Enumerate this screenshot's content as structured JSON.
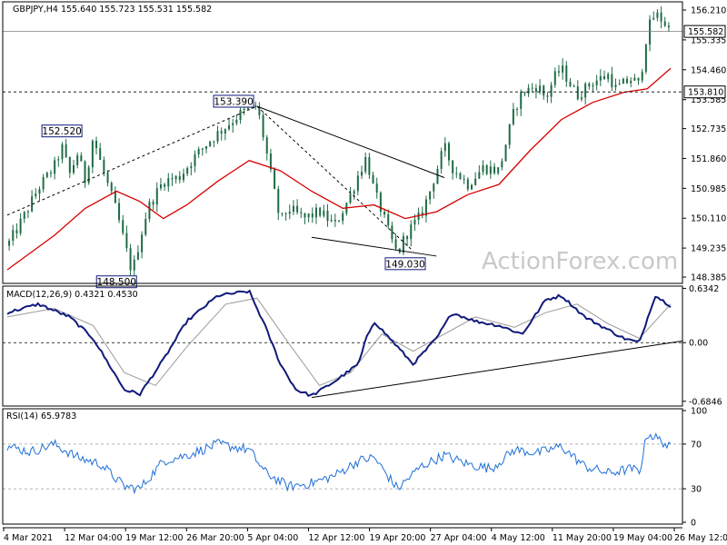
{
  "title": "GBPJPY,H4  155.640 155.723 155.531 155.582",
  "watermark": "ActionForex.com",
  "colors": {
    "background": "#ffffff",
    "candle": "#1f6b45",
    "ma": "#d60000",
    "macd": "#101a7a",
    "macd_signal": "#9a9a9a",
    "rsi": "#1f6fd6",
    "trendline": "#000000",
    "label_border": "#101a7a"
  },
  "x_axis": {
    "ticks": [
      "4 Mar 2021",
      "12 Mar 04:00",
      "19 Mar 12:00",
      "26 Mar 20:00",
      "5 Apr 04:00",
      "12 Apr 12:00",
      "19 Apr 20:00",
      "27 Apr 04:00",
      "4 May 12:00",
      "11 May 20:00",
      "19 May 04:00",
      "26 May 12:00"
    ]
  },
  "price_panel": {
    "y_ticks": [
      "156.210",
      "155.335",
      "154.460",
      "153.585",
      "152.735",
      "151.860",
      "150.985",
      "150.110",
      "149.235",
      "148.385"
    ],
    "ylim": [
      148.2,
      156.45
    ],
    "current_price": "155.582",
    "support_level": "153.810",
    "annotations": [
      "153.390",
      "152.520",
      "148.500",
      "149.030"
    ]
  },
  "macd_panel": {
    "label": "MACD(12,26,9) 0.4321 0.4530",
    "y_ticks": [
      "0.6342",
      "0.00",
      "-0.6846"
    ],
    "zero_line": "0.00"
  },
  "rsi_panel": {
    "label": "RSI(14) 65.9783",
    "y_ticks": [
      "100",
      "70",
      "30",
      "0"
    ]
  },
  "chart_data": [
    {
      "type": "candlestick",
      "title": "GBPJPY,H4",
      "x_range": [
        "2021-03-04",
        "2021-05-28"
      ],
      "ylim": [
        148.2,
        156.45
      ],
      "price_path": [
        [
          "2021-03-04",
          149.3
        ],
        [
          "2021-03-06",
          150.1
        ],
        [
          "2021-03-08",
          151.0
        ],
        [
          "2021-03-10",
          151.6
        ],
        [
          "2021-03-11",
          152.2
        ],
        [
          "2021-03-12",
          151.4
        ],
        [
          "2021-03-13",
          152.0
        ],
        [
          "2021-03-14",
          151.2
        ],
        [
          "2021-03-15",
          152.5
        ],
        [
          "2021-03-16",
          151.7
        ],
        [
          "2021-03-17",
          151.0
        ],
        [
          "2021-03-18",
          150.3
        ],
        [
          "2021-03-19",
          149.4
        ],
        [
          "2021-03-20",
          148.5
        ],
        [
          "2021-03-21",
          149.5
        ],
        [
          "2021-03-22",
          150.4
        ],
        [
          "2021-03-24",
          151.2
        ],
        [
          "2021-03-26",
          151.3
        ],
        [
          "2021-03-28",
          151.9
        ],
        [
          "2021-03-30",
          152.4
        ],
        [
          "2021-04-01",
          152.8
        ],
        [
          "2021-04-03",
          153.2
        ],
        [
          "2021-04-05",
          153.39
        ],
        [
          "2021-04-06",
          152.3
        ],
        [
          "2021-04-07",
          151.1
        ],
        [
          "2021-04-08",
          150.0
        ],
        [
          "2021-04-09",
          150.4
        ],
        [
          "2021-04-11",
          150.1
        ],
        [
          "2021-04-13",
          150.3
        ],
        [
          "2021-04-15",
          149.9
        ],
        [
          "2021-04-17",
          150.8
        ],
        [
          "2021-04-18",
          151.4
        ],
        [
          "2021-04-19",
          151.9
        ],
        [
          "2021-04-20",
          150.9
        ],
        [
          "2021-04-21",
          150.3
        ],
        [
          "2021-04-22",
          149.6
        ],
        [
          "2021-04-23",
          149.03
        ],
        [
          "2021-04-24",
          149.6
        ],
        [
          "2021-04-26",
          150.2
        ],
        [
          "2021-04-27",
          150.8
        ],
        [
          "2021-04-28",
          151.5
        ],
        [
          "2021-04-29",
          152.2
        ],
        [
          "2021-04-30",
          151.6
        ],
        [
          "2021-05-02",
          151.1
        ],
        [
          "2021-05-04",
          151.6
        ],
        [
          "2021-05-06",
          151.5
        ],
        [
          "2021-05-07",
          152.4
        ],
        [
          "2021-05-08",
          153.3
        ],
        [
          "2021-05-09",
          153.8
        ],
        [
          "2021-05-11",
          154.0
        ],
        [
          "2021-05-12",
          153.6
        ],
        [
          "2021-05-13",
          154.2
        ],
        [
          "2021-05-14",
          154.5
        ],
        [
          "2021-05-15",
          154.1
        ],
        [
          "2021-05-16",
          153.7
        ],
        [
          "2021-05-18",
          154.1
        ],
        [
          "2021-05-20",
          154.3
        ],
        [
          "2021-05-21",
          153.9
        ],
        [
          "2021-05-23",
          154.2
        ],
        [
          "2021-05-24",
          154.0
        ],
        [
          "2021-05-25",
          155.6
        ],
        [
          "2021-05-26",
          156.1
        ],
        [
          "2021-05-27",
          155.9
        ],
        [
          "2021-05-28",
          155.58
        ]
      ],
      "moving_average": [
        [
          "2021-03-04",
          148.6
        ],
        [
          "2021-03-10",
          149.6
        ],
        [
          "2021-03-14",
          150.4
        ],
        [
          "2021-03-18",
          150.9
        ],
        [
          "2021-03-21",
          150.6
        ],
        [
          "2021-03-24",
          150.1
        ],
        [
          "2021-03-27",
          150.5
        ],
        [
          "2021-03-31",
          151.2
        ],
        [
          "2021-04-04",
          151.8
        ],
        [
          "2021-04-08",
          151.5
        ],
        [
          "2021-04-12",
          150.9
        ],
        [
          "2021-04-16",
          150.4
        ],
        [
          "2021-04-20",
          150.5
        ],
        [
          "2021-04-24",
          150.1
        ],
        [
          "2021-04-28",
          150.3
        ],
        [
          "2021-05-02",
          150.8
        ],
        [
          "2021-05-06",
          151.1
        ],
        [
          "2021-05-10",
          152.1
        ],
        [
          "2021-05-14",
          153.0
        ],
        [
          "2021-05-18",
          153.5
        ],
        [
          "2021-05-22",
          153.8
        ],
        [
          "2021-05-25",
          153.9
        ],
        [
          "2021-05-28",
          154.5
        ]
      ],
      "drawn_lines": [
        {
          "from": [
            "2021-03-04",
            150.2
          ],
          "to": [
            "2021-04-05",
            153.39
          ]
        },
        {
          "from": [
            "2021-04-05",
            153.39
          ],
          "to": [
            "2021-04-29",
            151.3
          ]
        },
        {
          "from": [
            "2021-04-05",
            153.39
          ],
          "to": [
            "2021-04-25",
            149.15
          ]
        },
        {
          "from": [
            "2021-04-12",
            149.55
          ],
          "to": [
            "2021-04-28",
            149.0
          ]
        }
      ]
    },
    {
      "type": "line",
      "title": "MACD(12,26,9)",
      "ylim": [
        -0.74,
        0.66
      ],
      "series": [
        {
          "name": "MACD",
          "values": [
            [
              "2021-03-04",
              0.35
            ],
            [
              "2021-03-08",
              0.45
            ],
            [
              "2021-03-12",
              0.3
            ],
            [
              "2021-03-15",
              0.05
            ],
            [
              "2021-03-17",
              -0.25
            ],
            [
              "2021-03-19",
              -0.55
            ],
            [
              "2021-03-21",
              -0.6
            ],
            [
              "2021-03-24",
              -0.2
            ],
            [
              "2021-03-27",
              0.25
            ],
            [
              "2021-03-31",
              0.55
            ],
            [
              "2021-04-04",
              0.6
            ],
            [
              "2021-04-06",
              0.2
            ],
            [
              "2021-04-08",
              -0.25
            ],
            [
              "2021-04-10",
              -0.55
            ],
            [
              "2021-04-12",
              -0.62
            ],
            [
              "2021-04-15",
              -0.45
            ],
            [
              "2021-04-18",
              -0.25
            ],
            [
              "2021-04-19",
              0.05
            ],
            [
              "2021-04-20",
              0.25
            ],
            [
              "2021-04-23",
              -0.05
            ],
            [
              "2021-04-25",
              -0.25
            ],
            [
              "2021-04-28",
              0.05
            ],
            [
              "2021-04-30",
              0.35
            ],
            [
              "2021-05-03",
              0.25
            ],
            [
              "2021-05-06",
              0.2
            ],
            [
              "2021-05-09",
              0.1
            ],
            [
              "2021-05-12",
              0.5
            ],
            [
              "2021-05-14",
              0.55
            ],
            [
              "2021-05-17",
              0.3
            ],
            [
              "2021-05-20",
              0.15
            ],
            [
              "2021-05-22",
              0.05
            ],
            [
              "2021-05-24",
              0.0
            ],
            [
              "2021-05-26",
              0.55
            ],
            [
              "2021-05-28",
              0.43
            ]
          ]
        },
        {
          "name": "Signal",
          "values": [
            [
              "2021-03-04",
              0.3
            ],
            [
              "2021-03-10",
              0.4
            ],
            [
              "2021-03-15",
              0.2
            ],
            [
              "2021-03-19",
              -0.35
            ],
            [
              "2021-03-23",
              -0.5
            ],
            [
              "2021-03-27",
              -0.05
            ],
            [
              "2021-04-01",
              0.45
            ],
            [
              "2021-04-05",
              0.52
            ],
            [
              "2021-04-09",
              0.0
            ],
            [
              "2021-04-13",
              -0.5
            ],
            [
              "2021-04-17",
              -0.35
            ],
            [
              "2021-04-21",
              0.1
            ],
            [
              "2021-04-25",
              -0.1
            ],
            [
              "2021-04-29",
              0.1
            ],
            [
              "2021-05-03",
              0.3
            ],
            [
              "2021-05-08",
              0.18
            ],
            [
              "2021-05-12",
              0.35
            ],
            [
              "2021-05-16",
              0.45
            ],
            [
              "2021-05-20",
              0.22
            ],
            [
              "2021-05-24",
              0.05
            ],
            [
              "2021-05-28",
              0.45
            ]
          ]
        }
      ],
      "trendline": {
        "from": [
          "2021-04-12",
          -0.64
        ],
        "to": [
          "2021-05-28",
          0.02
        ]
      }
    },
    {
      "type": "line",
      "title": "RSI(14)",
      "ylim": [
        0,
        100
      ],
      "series": [
        {
          "name": "RSI",
          "values": [
            [
              "2021-03-04",
              68
            ],
            [
              "2021-03-07",
              63
            ],
            [
              "2021-03-10",
              70
            ],
            [
              "2021-03-13",
              58
            ],
            [
              "2021-03-16",
              52
            ],
            [
              "2021-03-19",
              32
            ],
            [
              "2021-03-21",
              30
            ],
            [
              "2021-03-24",
              55
            ],
            [
              "2021-03-27",
              60
            ],
            [
              "2021-03-31",
              70
            ],
            [
              "2021-04-04",
              65
            ],
            [
              "2021-04-06",
              45
            ],
            [
              "2021-04-09",
              32
            ],
            [
              "2021-04-12",
              35
            ],
            [
              "2021-04-15",
              42
            ],
            [
              "2021-04-18",
              55
            ],
            [
              "2021-04-20",
              58
            ],
            [
              "2021-04-23",
              30
            ],
            [
              "2021-04-26",
              50
            ],
            [
              "2021-04-29",
              60
            ],
            [
              "2021-05-02",
              52
            ],
            [
              "2021-05-05",
              48
            ],
            [
              "2021-05-08",
              65
            ],
            [
              "2021-05-11",
              62
            ],
            [
              "2021-05-14",
              68
            ],
            [
              "2021-05-17",
              50
            ],
            [
              "2021-05-20",
              44
            ],
            [
              "2021-05-23",
              48
            ],
            [
              "2021-05-24",
              45
            ],
            [
              "2021-05-25",
              80
            ],
            [
              "2021-05-27",
              72
            ],
            [
              "2021-05-28",
              66
            ]
          ]
        }
      ]
    }
  ]
}
